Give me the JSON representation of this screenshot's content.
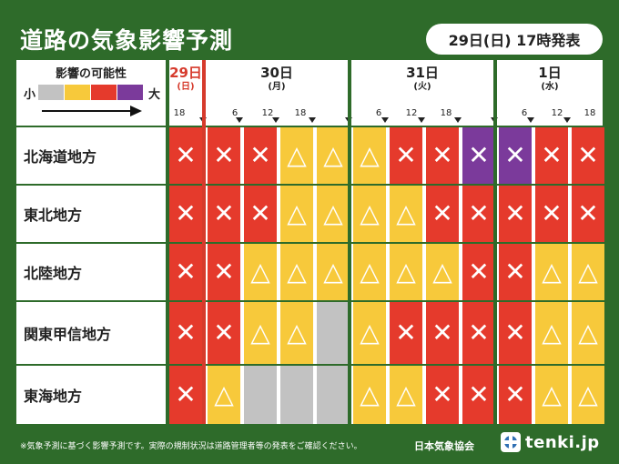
{
  "title": "道路の気象影響予測",
  "issued": "29日(日) 17時発表",
  "legend": {
    "title": "影響の可能性",
    "small": "小",
    "large": "大",
    "colors": [
      "#c2c2c2",
      "#f7c93b",
      "#e53a2c",
      "#7b3a9b"
    ]
  },
  "days": [
    {
      "date": "29日",
      "weekday": "(日)",
      "today": true
    },
    {
      "date": "30日",
      "weekday": "(月)"
    },
    {
      "date": "31日",
      "weekday": "(火)"
    },
    {
      "date": "1日",
      "weekday": "(水)"
    }
  ],
  "hour_labels": [
    "18",
    "6",
    "12",
    "18",
    "6",
    "12",
    "18",
    "6",
    "12",
    "18"
  ],
  "symbols": {
    "red": "✕",
    "purple": "✕",
    "yellow": "△",
    "gray": ""
  },
  "regions": [
    {
      "name": "北海道地方",
      "levels": [
        "red",
        "red",
        "red",
        "yellow",
        "yellow",
        "yellow",
        "red",
        "red",
        "purple",
        "purple",
        "red",
        "red"
      ]
    },
    {
      "name": "東北地方",
      "levels": [
        "red",
        "red",
        "red",
        "yellow",
        "yellow",
        "yellow",
        "yellow",
        "red",
        "red",
        "red",
        "red",
        "red"
      ]
    },
    {
      "name": "北陸地方",
      "levels": [
        "red",
        "red",
        "yellow",
        "yellow",
        "yellow",
        "yellow",
        "yellow",
        "yellow",
        "red",
        "red",
        "yellow",
        "yellow"
      ]
    },
    {
      "name": "関東甲信地方",
      "levels": [
        "red",
        "red",
        "yellow",
        "yellow",
        "gray",
        "yellow",
        "red",
        "red",
        "red",
        "red",
        "yellow",
        "yellow"
      ]
    },
    {
      "name": "東海地方",
      "levels": [
        "red",
        "yellow",
        "gray",
        "gray",
        "gray",
        "yellow",
        "yellow",
        "red",
        "red",
        "red",
        "yellow",
        "yellow"
      ]
    }
  ],
  "footnote": "※気象予測に基づく影響予測です。実際の規制状況は道路管理者等の発表をご確認ください。",
  "organization": "日本気象協会",
  "brand": "tenki.jp"
}
